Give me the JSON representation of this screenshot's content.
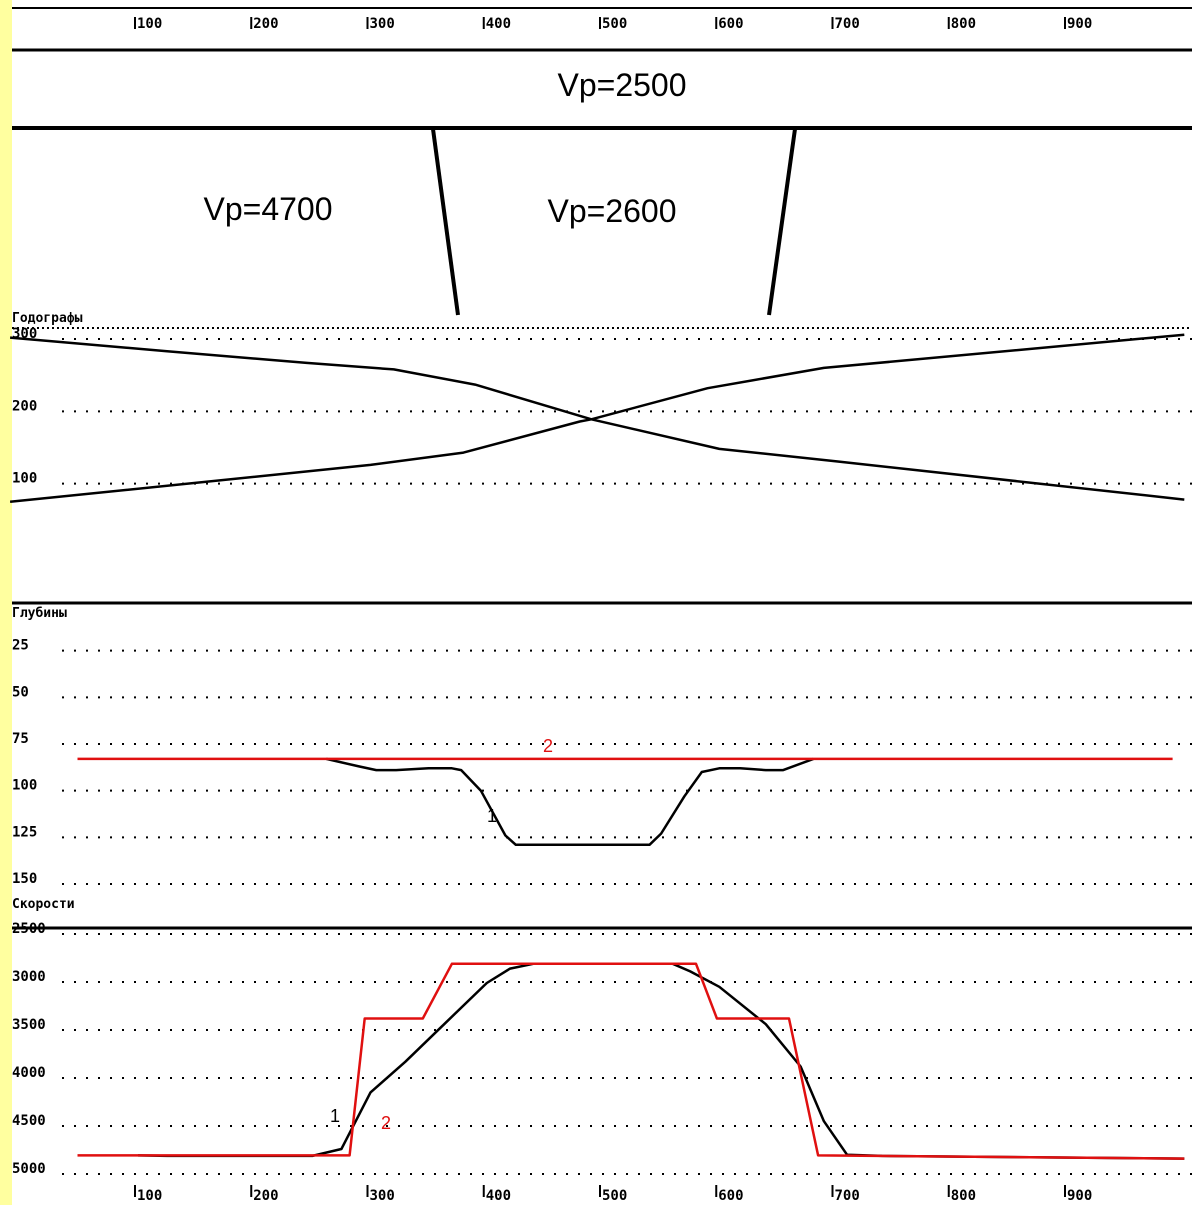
{
  "colors": {
    "page_background": "#ffffff",
    "sidebar": "#ffff9f",
    "ink": "#000000",
    "curve_2": "#e01010"
  },
  "top_axis": {
    "ticks": [
      "100",
      "200",
      "300",
      "400",
      "500",
      "600",
      "700",
      "800",
      "900"
    ]
  },
  "bottom_axis": {
    "ticks": [
      "100",
      "200",
      "300",
      "400",
      "500",
      "600",
      "700",
      "800",
      "900"
    ]
  },
  "model": {
    "upper_layer": {
      "label": "Vp=2500"
    },
    "left_block": {
      "label": "Vp=4700"
    },
    "middle_block": {
      "label": "Vp=2600"
    }
  },
  "chart_data": [
    {
      "type": "line",
      "title": "Годографы",
      "ylim": [
        0,
        300
      ],
      "y_ticks": [
        "300",
        "200",
        "100"
      ],
      "y_tick_values": [
        300,
        200,
        100
      ],
      "grid": true,
      "series": [
        {
          "x": [
            -10,
            125,
            245,
            320,
            390,
            490,
            600,
            700,
            1000
          ],
          "y": [
            302,
            283,
            267,
            258,
            237,
            189,
            148,
            131,
            78
          ]
        },
        {
          "x": [
            -10,
            300,
            380,
            480,
            490,
            590,
            690,
            1000
          ],
          "y": [
            75,
            126,
            143,
            186,
            189,
            232,
            260,
            306
          ]
        }
      ]
    },
    {
      "type": "line",
      "title": "Глубины",
      "ylim": [
        150,
        0
      ],
      "y_ticks": [
        "25",
        "50",
        "75",
        "100",
        "125",
        "150"
      ],
      "y_tick_values": [
        25,
        50,
        75,
        100,
        125,
        150
      ],
      "grid": true,
      "series": [
        {
          "label": "1",
          "x": [
            262,
            290,
            305,
            322,
            350,
            370,
            378,
            395,
            416,
            425,
            475,
            540,
            550,
            570,
            585,
            600,
            618,
            640,
            655,
            681
          ],
          "y": [
            83,
            87,
            89,
            89,
            88,
            88,
            89,
            100,
            124,
            129,
            129,
            129,
            123,
            103,
            90,
            88,
            88,
            89,
            89,
            83
          ]
        },
        {
          "label": "2",
          "x": [
            48,
            990
          ],
          "y": [
            83,
            83
          ]
        }
      ]
    },
    {
      "type": "line",
      "title": "Скорости",
      "ylim": [
        5000,
        2500
      ],
      "y_ticks": [
        "2500",
        "3000",
        "3500",
        "4000",
        "4500",
        "5000"
      ],
      "y_tick_values": [
        2500,
        3000,
        3500,
        4000,
        4500,
        5000
      ],
      "grid": true,
      "series": [
        {
          "label": "1",
          "x": [
            100,
            125,
            250,
            275,
            300,
            330,
            365,
            400,
            420,
            440,
            560,
            575,
            600,
            640,
            670,
            690,
            710,
            740,
            1000
          ],
          "y": [
            4806,
            4811,
            4811,
            4740,
            4150,
            3830,
            3420,
            3010,
            2860,
            2810,
            2810,
            2890,
            3050,
            3440,
            3880,
            4450,
            4800,
            4811,
            4840
          ]
        },
        {
          "label": "2",
          "x": [
            48,
            282,
            295,
            345,
            370,
            380,
            580,
            598,
            660,
            685,
            1000
          ],
          "y": [
            4806,
            4806,
            3380,
            3380,
            2810,
            2810,
            2810,
            3380,
            3380,
            4806,
            4840
          ]
        }
      ]
    }
  ]
}
